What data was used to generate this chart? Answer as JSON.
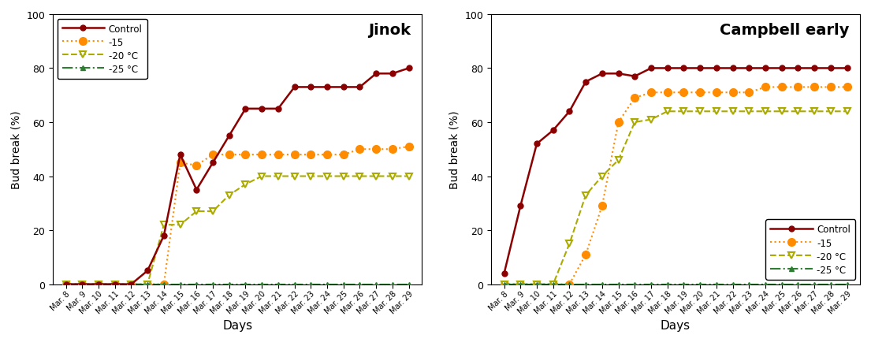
{
  "x_labels": [
    "Mar. 8",
    "Mar. 9",
    "Mar. 10",
    "Mar. 11",
    "Mar. 12",
    "Mar. 13",
    "Mar. 14",
    "Mar. 15",
    "Mar. 16",
    "Mar. 17",
    "Mar. 18",
    "Mar. 19",
    "Mar. 20",
    "Mar. 21",
    "Mar. 22",
    "Mar. 23",
    "Mar. 24",
    "Mar. 25",
    "Mar. 26",
    "Mar. 27",
    "Mar. 28",
    "Mar. 29"
  ],
  "jinok": {
    "title": "Jinok",
    "control": [
      0,
      0,
      0,
      0,
      0,
      5,
      18,
      48,
      35,
      45,
      55,
      65,
      65,
      65,
      73,
      73,
      73,
      73,
      73,
      78,
      78,
      80
    ],
    "neg15": [
      0,
      0,
      0,
      0,
      0,
      0,
      0,
      45,
      44,
      48,
      48,
      48,
      48,
      48,
      48,
      48,
      48,
      48,
      50,
      50,
      50,
      51
    ],
    "neg20": [
      0,
      0,
      0,
      0,
      0,
      0,
      22,
      22,
      27,
      27,
      33,
      37,
      40,
      40,
      40,
      40,
      40,
      40,
      40,
      40,
      40,
      40
    ],
    "neg25": [
      0,
      0,
      0,
      0,
      0,
      0,
      0,
      0,
      0,
      0,
      0,
      0,
      0,
      0,
      0,
      0,
      0,
      0,
      0,
      0,
      0,
      0
    ]
  },
  "campbell": {
    "title": "Campbell early",
    "control": [
      4,
      29,
      52,
      57,
      64,
      75,
      78,
      78,
      77,
      80,
      80,
      80,
      80,
      80,
      80,
      80,
      80,
      80,
      80,
      80,
      80,
      80
    ],
    "neg15": [
      0,
      0,
      0,
      0,
      0,
      11,
      29,
      60,
      69,
      71,
      71,
      71,
      71,
      71,
      71,
      71,
      73,
      73,
      73,
      73,
      73,
      73
    ],
    "neg20": [
      0,
      0,
      0,
      0,
      15,
      33,
      40,
      46,
      60,
      61,
      64,
      64,
      64,
      64,
      64,
      64,
      64,
      64,
      64,
      64,
      64,
      64
    ],
    "neg25": [
      0,
      0,
      0,
      0,
      0,
      0,
      0,
      0,
      0,
      0,
      0,
      0,
      0,
      0,
      0,
      0,
      0,
      0,
      0,
      0,
      0,
      0
    ]
  },
  "colors": {
    "control": "#8B0000",
    "neg15": "#FF8C00",
    "neg20": "#AAAA00",
    "neg25": "#2E7D32"
  },
  "ylabel": "Bud break (%)",
  "xlabel": "Days",
  "ylim": [
    0,
    100
  ],
  "legend_labels_jinok_loc": "upper left",
  "legend_labels_campbell_loc": "lower right"
}
